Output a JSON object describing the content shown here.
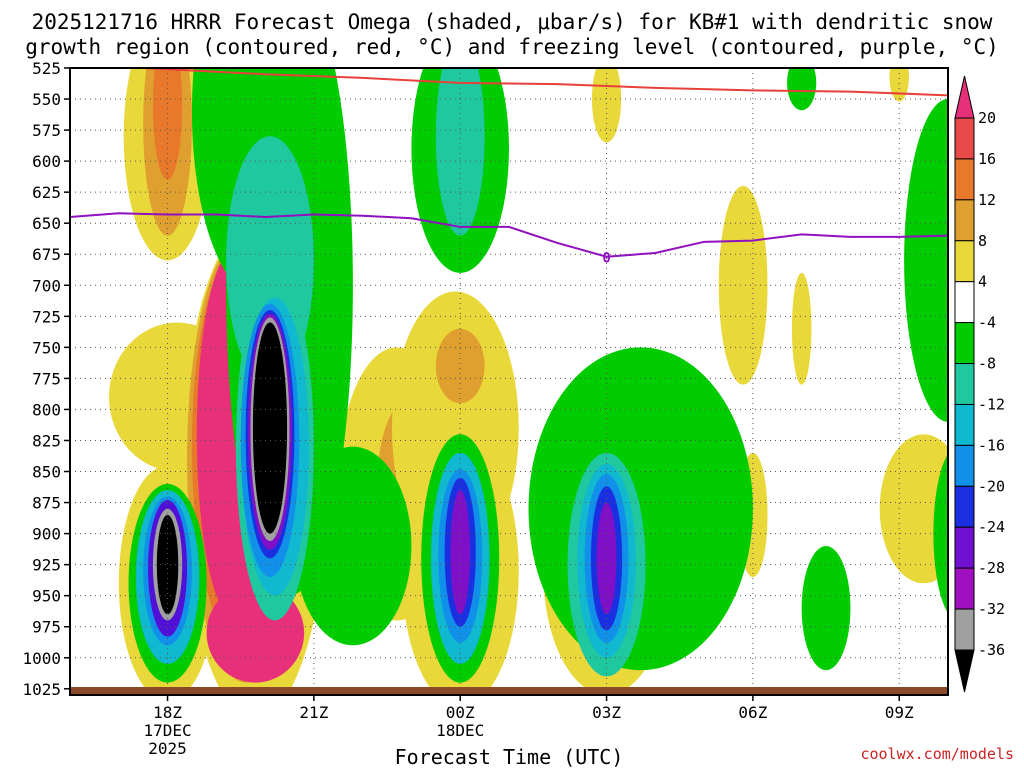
{
  "chart_data": {
    "type": "heatmap",
    "title_line1": "2025121716 HRRR Forecast Omega (shaded, μbar/s) for KB#1 with dendritic snow",
    "title_line2": "growth region (contoured, red, °C) and freezing level (contoured, purple, °C)",
    "xlabel": "Forecast Time (UTC)",
    "ylabel": "Pressure (hPa)",
    "credit": "coolwx.com/models",
    "x_range_hours": [
      -2.0,
      16.0
    ],
    "y_range_hpa": [
      525,
      1030
    ],
    "y_ticks": [
      "525",
      "550",
      "575",
      "600",
      "625",
      "650",
      "675",
      "700",
      "725",
      "750",
      "775",
      "800",
      "825",
      "850",
      "875",
      "900",
      "925",
      "950",
      "975",
      "1000",
      "1025"
    ],
    "x_ticks": [
      {
        "hour": 0,
        "label": "18Z",
        "sub1": "17DEC",
        "sub2": "2025"
      },
      {
        "hour": 3,
        "label": "21Z",
        "sub1": "",
        "sub2": ""
      },
      {
        "hour": 6,
        "label": "00Z",
        "sub1": "18DEC",
        "sub2": ""
      },
      {
        "hour": 9,
        "label": "03Z",
        "sub1": "",
        "sub2": ""
      },
      {
        "hour": 12,
        "label": "06Z",
        "sub1": "",
        "sub2": ""
      },
      {
        "hour": 15,
        "label": "09Z",
        "sub1": "",
        "sub2": ""
      }
    ],
    "colorbar": {
      "labels": [
        "20",
        "16",
        "12",
        "8",
        "4",
        "-4",
        "-8",
        "-12",
        "-16",
        "-20",
        "-24",
        "-28",
        "-32",
        "-36"
      ],
      "colors": [
        "#e8307a",
        "#e84a4a",
        "#e8782a",
        "#e0a030",
        "#e8d83a",
        "#ffffff",
        "#00cc00",
        "#20c8a0",
        "#10b8d0",
        "#1090e8",
        "#1a30e0",
        "#7010d0",
        "#a010c0",
        "#a0a0a0",
        "#000000"
      ]
    },
    "freezing_level": {
      "label": "0",
      "hours": [
        -2.0,
        -1.0,
        0.0,
        1.0,
        2.0,
        3.0,
        4.0,
        5.0,
        6.0,
        7.0,
        8.0,
        9.0,
        10.0,
        11.0,
        12.0,
        13.0,
        14.0,
        15.0,
        16.0
      ],
      "hpa": [
        645,
        642,
        643,
        643,
        645,
        643,
        644,
        646,
        653,
        653,
        666,
        677,
        674,
        665,
        664,
        659,
        661,
        661,
        660
      ]
    },
    "dgz_top": {
      "hours": [
        -2.0,
        0.0,
        2.0,
        4.0,
        6.0,
        8.0,
        10.0,
        12.0,
        14.0,
        16.0
      ],
      "hpa": [
        522,
        526,
        530,
        533,
        537,
        538,
        541,
        543,
        544,
        547
      ]
    },
    "omega_regions": [
      {
        "cx": 0.0,
        "cy": 940,
        "rx": 1.0,
        "ry": 95,
        "level": 4
      },
      {
        "cx": 0.2,
        "cy": 790,
        "rx": 1.4,
        "ry": 60,
        "level": 4
      },
      {
        "cx": 1.8,
        "cy": 850,
        "rx": 1.5,
        "ry": 200,
        "level": 4
      },
      {
        "cx": 1.6,
        "cy": 840,
        "rx": 1.2,
        "ry": 180,
        "level": 8
      },
      {
        "cx": 1.5,
        "cy": 830,
        "rx": 1.0,
        "ry": 160,
        "level": 12
      },
      {
        "cx": 1.4,
        "cy": 820,
        "rx": 0.8,
        "ry": 150,
        "level": 20
      },
      {
        "cx": 1.8,
        "cy": 980,
        "rx": 1.0,
        "ry": 40,
        "level": 20
      },
      {
        "cx": 0.0,
        "cy": 580,
        "rx": 0.9,
        "ry": 100,
        "level": 4
      },
      {
        "cx": 0.0,
        "cy": 570,
        "rx": 0.5,
        "ry": 90,
        "level": 8
      },
      {
        "cx": 0.0,
        "cy": 555,
        "rx": 0.3,
        "ry": 60,
        "level": 12
      },
      {
        "cx": 4.7,
        "cy": 860,
        "rx": 1.2,
        "ry": 110,
        "level": 4
      },
      {
        "cx": 5.0,
        "cy": 860,
        "rx": 0.7,
        "ry": 70,
        "level": 8
      },
      {
        "cx": 5.9,
        "cy": 815,
        "rx": 1.3,
        "ry": 110,
        "level": 4
      },
      {
        "cx": 6.0,
        "cy": 765,
        "rx": 0.5,
        "ry": 30,
        "level": 8
      },
      {
        "cx": 6.0,
        "cy": 930,
        "rx": 1.2,
        "ry": 110,
        "level": 4
      },
      {
        "cx": 9.0,
        "cy": 930,
        "rx": 1.3,
        "ry": 100,
        "level": 4
      },
      {
        "cx": 9.0,
        "cy": 550,
        "rx": 0.3,
        "ry": 35,
        "level": 4
      },
      {
        "cx": 11.8,
        "cy": 700,
        "rx": 0.5,
        "ry": 80,
        "level": 4
      },
      {
        "cx": 13.0,
        "cy": 735,
        "rx": 0.2,
        "ry": 45,
        "level": 4
      },
      {
        "cx": 12.0,
        "cy": 885,
        "rx": 0.3,
        "ry": 50,
        "level": 4
      },
      {
        "cx": 15.5,
        "cy": 880,
        "rx": 0.9,
        "ry": 60,
        "level": 4
      },
      {
        "cx": 15.0,
        "cy": 532,
        "rx": 0.2,
        "ry": 20,
        "level": 4
      },
      {
        "cx": 3.8,
        "cy": 910,
        "rx": 1.2,
        "ry": 80,
        "level": -4
      },
      {
        "cx": 1.9,
        "cy": 560,
        "rx": 1.4,
        "ry": 150,
        "level": -4
      },
      {
        "cx": 2.5,
        "cy": 700,
        "rx": 1.3,
        "ry": 250,
        "level": -4
      },
      {
        "cx": 2.1,
        "cy": 680,
        "rx": 0.9,
        "ry": 100,
        "level": -8
      },
      {
        "cx": 2.2,
        "cy": 830,
        "rx": 0.8,
        "ry": 140,
        "level": -8
      },
      {
        "cx": 2.2,
        "cy": 830,
        "rx": 0.7,
        "ry": 120,
        "level": -12
      },
      {
        "cx": 2.1,
        "cy": 825,
        "rx": 0.6,
        "ry": 110,
        "level": -16
      },
      {
        "cx": 2.1,
        "cy": 820,
        "rx": 0.5,
        "ry": 100,
        "level": -20
      },
      {
        "cx": 2.1,
        "cy": 818,
        "rx": 0.45,
        "ry": 95,
        "level": -28
      },
      {
        "cx": 2.1,
        "cy": 816,
        "rx": 0.4,
        "ry": 90,
        "level": -32
      },
      {
        "cx": 2.1,
        "cy": 815,
        "rx": 0.35,
        "ry": 85,
        "level": -36
      },
      {
        "cx": 0.0,
        "cy": 940,
        "rx": 0.8,
        "ry": 80,
        "level": -4
      },
      {
        "cx": 0.0,
        "cy": 935,
        "rx": 0.65,
        "ry": 70,
        "level": -12
      },
      {
        "cx": 0.0,
        "cy": 930,
        "rx": 0.5,
        "ry": 60,
        "level": -16
      },
      {
        "cx": 0.0,
        "cy": 928,
        "rx": 0.4,
        "ry": 55,
        "level": -24
      },
      {
        "cx": 0.0,
        "cy": 925,
        "rx": 0.3,
        "ry": 45,
        "level": -32
      },
      {
        "cx": 0.0,
        "cy": 925,
        "rx": 0.22,
        "ry": 40,
        "level": -36
      },
      {
        "cx": 6.0,
        "cy": 590,
        "rx": 1.0,
        "ry": 100,
        "level": -4
      },
      {
        "cx": 6.0,
        "cy": 580,
        "rx": 0.5,
        "ry": 80,
        "level": -8
      },
      {
        "cx": 6.0,
        "cy": 920,
        "rx": 0.8,
        "ry": 100,
        "level": -4
      },
      {
        "cx": 6.0,
        "cy": 920,
        "rx": 0.6,
        "ry": 85,
        "level": -12
      },
      {
        "cx": 6.0,
        "cy": 918,
        "rx": 0.45,
        "ry": 70,
        "level": -16
      },
      {
        "cx": 6.0,
        "cy": 915,
        "rx": 0.32,
        "ry": 60,
        "level": -20
      },
      {
        "cx": 6.0,
        "cy": 915,
        "rx": 0.2,
        "ry": 50,
        "level": -28
      },
      {
        "cx": 9.7,
        "cy": 880,
        "rx": 2.3,
        "ry": 130,
        "level": -4
      },
      {
        "cx": 9.0,
        "cy": 925,
        "rx": 0.8,
        "ry": 90,
        "level": -8
      },
      {
        "cx": 9.0,
        "cy": 922,
        "rx": 0.6,
        "ry": 78,
        "level": -12
      },
      {
        "cx": 9.0,
        "cy": 920,
        "rx": 0.45,
        "ry": 68,
        "level": -16
      },
      {
        "cx": 9.0,
        "cy": 920,
        "rx": 0.32,
        "ry": 58,
        "level": -20
      },
      {
        "cx": 9.0,
        "cy": 920,
        "rx": 0.2,
        "ry": 45,
        "level": -28
      },
      {
        "cx": 13.5,
        "cy": 960,
        "rx": 0.5,
        "ry": 50,
        "level": -4
      },
      {
        "cx": 13.0,
        "cy": 537,
        "rx": 0.3,
        "ry": 22,
        "level": -4
      },
      {
        "cx": 16.0,
        "cy": 680,
        "rx": 0.9,
        "ry": 130,
        "level": -4
      },
      {
        "cx": 16.2,
        "cy": 900,
        "rx": 0.5,
        "ry": 70,
        "level": -4
      }
    ]
  }
}
